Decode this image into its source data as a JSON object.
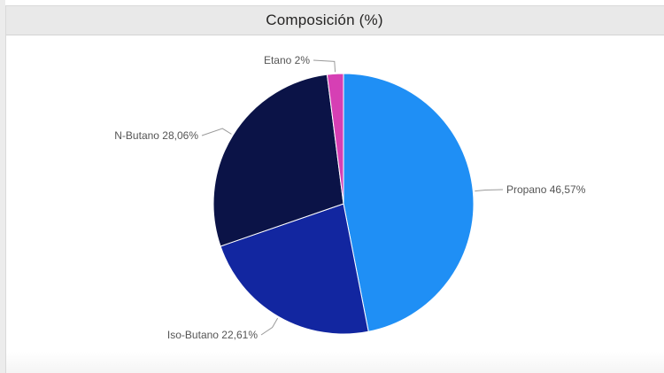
{
  "window": {
    "title": "Composición (%)"
  },
  "chart_data": {
    "type": "pie",
    "title": "Composición (%)",
    "slices": [
      {
        "name": "Propano",
        "value": 46.57,
        "label": "Propano 46,57%",
        "color": "#1f8ff5"
      },
      {
        "name": "Iso-Butano",
        "value": 22.61,
        "label": "Iso-Butano 22,61%",
        "color": "#1226a0"
      },
      {
        "name": "N-Butano",
        "value": 28.06,
        "label": "N-Butano 28,06%",
        "color": "#0b1347"
      },
      {
        "name": "Etano",
        "value": 2,
        "label": "Etano 2%",
        "color": "#d63fb4"
      }
    ],
    "legend": "none",
    "start_angle_deg": 0,
    "direction": "clockwise"
  }
}
